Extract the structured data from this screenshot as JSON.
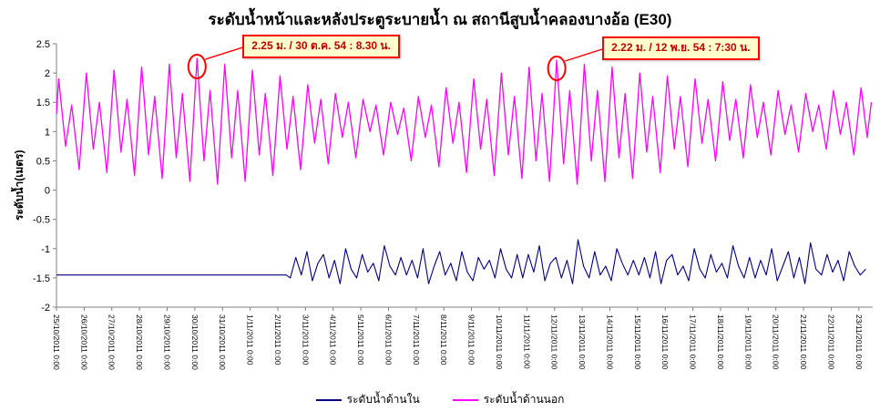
{
  "chart_data": {
    "type": "line",
    "title": "ระดับน้ำหน้าและหลังประตูระบายน้ำ ณ สถานีสูบน้ำคลองบางอ้อ (E30)",
    "ylabel": "ระดับน้ำ(เมตร)",
    "xlabel": "",
    "ylim": [
      -2,
      2.5
    ],
    "y_ticks": [
      2.5,
      2,
      1.5,
      1,
      0.5,
      0,
      -0.5,
      -1,
      -1.5,
      -2
    ],
    "x_range_days": [
      0,
      29.5
    ],
    "grid": false,
    "legend_position": "bottom",
    "x_tick_labels": [
      "25/10/2011 0:00",
      "26/10/2011 0:00",
      "27/10/2011 0:00",
      "28/10/2011 0:00",
      "29/10/2011 0:00",
      "30/10/2011 0:00",
      "31/10/2011 0:00",
      "1/11/2011 0:00",
      "2/11/2011 0:00",
      "3/11/2011 0:00",
      "4/11/2011 0:00",
      "5/11/2011 0:00",
      "6/11/2011 0:00",
      "7/11/2011 0:00",
      "8/11/2011 0:00",
      "9/11/2011 0:00",
      "10/11/2011 0:00",
      "11/11/2011 0:00",
      "12/11/2011 0:00",
      "13/11/2011 0:00",
      "14/11/2011 0:00",
      "15/11/2011 0:00",
      "16/11/2011 0:00",
      "17/11/2011 0:00",
      "18/11/2011 0:00",
      "19/11/2011 0:00",
      "20/11/2011 0:00",
      "21/11/2011 0:00",
      "22/11/2011 0:00",
      "23/11/2011 0:00"
    ],
    "series": [
      {
        "name": "ระดับน้ำด้านใน",
        "color": "#000080",
        "flat_segment": {
          "t_start": 0,
          "t_end": 8.3,
          "value": -1.45
        },
        "noise_segment": {
          "t_start": 8.45,
          "t_step": 0.2,
          "values": [
            -1.5,
            -1.15,
            -1.45,
            -1.05,
            -1.55,
            -1.25,
            -1.1,
            -1.5,
            -1.2,
            -1.6,
            -1.0,
            -1.35,
            -1.5,
            -1.1,
            -1.4,
            -1.25,
            -1.55,
            -0.95,
            -1.3,
            -1.45,
            -1.15,
            -1.45,
            -1.2,
            -1.5,
            -1.0,
            -1.6,
            -1.3,
            -1.05,
            -1.45,
            -1.25,
            -1.55,
            -1.05,
            -1.4,
            -1.55,
            -1.15,
            -1.35,
            -1.2,
            -1.5,
            -1.0,
            -1.35,
            -1.5,
            -1.1,
            -1.5,
            -1.1,
            -1.4,
            -0.95,
            -1.55,
            -1.25,
            -1.15,
            -1.5,
            -1.2,
            -1.6,
            -0.85,
            -1.3,
            -1.5,
            -1.05,
            -1.45,
            -1.3,
            -1.55,
            -1.0,
            -1.25,
            -1.45,
            -1.2,
            -1.45,
            -1.15,
            -1.5,
            -1.05,
            -1.6,
            -1.2,
            -1.1,
            -1.45,
            -1.3,
            -1.55,
            -1.0,
            -1.35,
            -1.5,
            -1.1,
            -1.4,
            -1.25,
            -1.5,
            -0.95,
            -1.3,
            -1.5,
            -1.15,
            -1.5,
            -1.2,
            -1.45,
            -1.0,
            -1.55,
            -1.3,
            -1.05,
            -1.5,
            -1.15,
            -1.6,
            -0.9,
            -1.35,
            -1.45,
            -1.1,
            -1.4,
            -1.2,
            -1.55,
            -1.05,
            -1.3,
            -1.45,
            -1.35
          ]
        }
      },
      {
        "name": "ระดับน้ำด้านนอก",
        "color": "#FF00FF",
        "points": [
          [
            0.0,
            1.3
          ],
          [
            0.08,
            1.9
          ],
          [
            0.33,
            0.75
          ],
          [
            0.55,
            1.45
          ],
          [
            0.82,
            0.35
          ],
          [
            1.08,
            2.0
          ],
          [
            1.33,
            0.7
          ],
          [
            1.55,
            1.5
          ],
          [
            1.82,
            0.3
          ],
          [
            2.08,
            2.05
          ],
          [
            2.33,
            0.65
          ],
          [
            2.55,
            1.55
          ],
          [
            2.82,
            0.25
          ],
          [
            3.08,
            2.1
          ],
          [
            3.33,
            0.6
          ],
          [
            3.55,
            1.6
          ],
          [
            3.82,
            0.2
          ],
          [
            4.08,
            2.15
          ],
          [
            4.33,
            0.55
          ],
          [
            4.55,
            1.65
          ],
          [
            4.82,
            0.15
          ],
          [
            5.08,
            2.25
          ],
          [
            5.33,
            0.5
          ],
          [
            5.55,
            1.7
          ],
          [
            5.82,
            0.1
          ],
          [
            6.08,
            2.15
          ],
          [
            6.33,
            0.55
          ],
          [
            6.55,
            1.7
          ],
          [
            6.82,
            0.15
          ],
          [
            7.08,
            2.05
          ],
          [
            7.33,
            0.6
          ],
          [
            7.55,
            1.65
          ],
          [
            7.82,
            0.25
          ],
          [
            8.08,
            1.95
          ],
          [
            8.33,
            0.7
          ],
          [
            8.55,
            1.6
          ],
          [
            8.82,
            0.35
          ],
          [
            9.08,
            1.8
          ],
          [
            9.33,
            0.8
          ],
          [
            9.55,
            1.55
          ],
          [
            9.82,
            0.45
          ],
          [
            10.08,
            1.65
          ],
          [
            10.33,
            0.9
          ],
          [
            10.55,
            1.5
          ],
          [
            10.82,
            0.55
          ],
          [
            11.08,
            1.55
          ],
          [
            11.33,
            1.0
          ],
          [
            11.55,
            1.45
          ],
          [
            11.82,
            0.6
          ],
          [
            12.08,
            1.5
          ],
          [
            12.33,
            0.95
          ],
          [
            12.55,
            1.4
          ],
          [
            12.82,
            0.5
          ],
          [
            13.08,
            1.6
          ],
          [
            13.33,
            0.9
          ],
          [
            13.55,
            1.45
          ],
          [
            13.82,
            0.4
          ],
          [
            14.08,
            1.75
          ],
          [
            14.33,
            0.8
          ],
          [
            14.55,
            1.5
          ],
          [
            14.82,
            0.3
          ],
          [
            15.08,
            1.9
          ],
          [
            15.33,
            0.7
          ],
          [
            15.55,
            1.55
          ],
          [
            15.82,
            0.25
          ],
          [
            16.08,
            2.0
          ],
          [
            16.33,
            0.6
          ],
          [
            16.55,
            1.6
          ],
          [
            16.82,
            0.2
          ],
          [
            17.08,
            2.1
          ],
          [
            17.33,
            0.5
          ],
          [
            17.55,
            1.65
          ],
          [
            17.82,
            0.15
          ],
          [
            18.08,
            2.22
          ],
          [
            18.33,
            0.45
          ],
          [
            18.55,
            1.7
          ],
          [
            18.82,
            0.1
          ],
          [
            19.08,
            2.15
          ],
          [
            19.33,
            0.5
          ],
          [
            19.55,
            1.7
          ],
          [
            19.82,
            0.15
          ],
          [
            20.08,
            2.1
          ],
          [
            20.33,
            0.55
          ],
          [
            20.55,
            1.65
          ],
          [
            20.82,
            0.2
          ],
          [
            21.08,
            2.0
          ],
          [
            21.33,
            0.65
          ],
          [
            21.55,
            1.6
          ],
          [
            21.82,
            0.3
          ],
          [
            22.08,
            1.95
          ],
          [
            22.33,
            0.7
          ],
          [
            22.55,
            1.6
          ],
          [
            22.82,
            0.4
          ],
          [
            23.08,
            1.9
          ],
          [
            23.33,
            0.8
          ],
          [
            23.55,
            1.55
          ],
          [
            23.82,
            0.5
          ],
          [
            24.08,
            1.85
          ],
          [
            24.33,
            0.85
          ],
          [
            24.55,
            1.55
          ],
          [
            24.82,
            0.55
          ],
          [
            25.08,
            1.8
          ],
          [
            25.33,
            0.9
          ],
          [
            25.55,
            1.5
          ],
          [
            25.82,
            0.6
          ],
          [
            26.08,
            1.7
          ],
          [
            26.33,
            0.95
          ],
          [
            26.55,
            1.45
          ],
          [
            26.82,
            0.65
          ],
          [
            27.08,
            1.65
          ],
          [
            27.33,
            1.0
          ],
          [
            27.55,
            1.45
          ],
          [
            27.82,
            0.7
          ],
          [
            28.08,
            1.7
          ],
          [
            28.33,
            0.95
          ],
          [
            28.55,
            1.5
          ],
          [
            28.82,
            0.6
          ],
          [
            29.08,
            1.75
          ],
          [
            29.3,
            0.9
          ],
          [
            29.45,
            1.5
          ]
        ]
      }
    ],
    "annotations": [
      {
        "text": "2.25 ม. / 30 ต.ค. 54 : 8.30 น.",
        "t": 5.08,
        "value": 2.25
      },
      {
        "text": "2.22 ม. / 12 พ.ย. 54 : 7:30 น.",
        "t": 18.08,
        "value": 2.22
      }
    ],
    "annotation_style": {
      "box_fill": "#FFFFCC",
      "box_border": "#FF0000",
      "text_color": "#C00000",
      "circle_color": "#FF0000"
    }
  }
}
